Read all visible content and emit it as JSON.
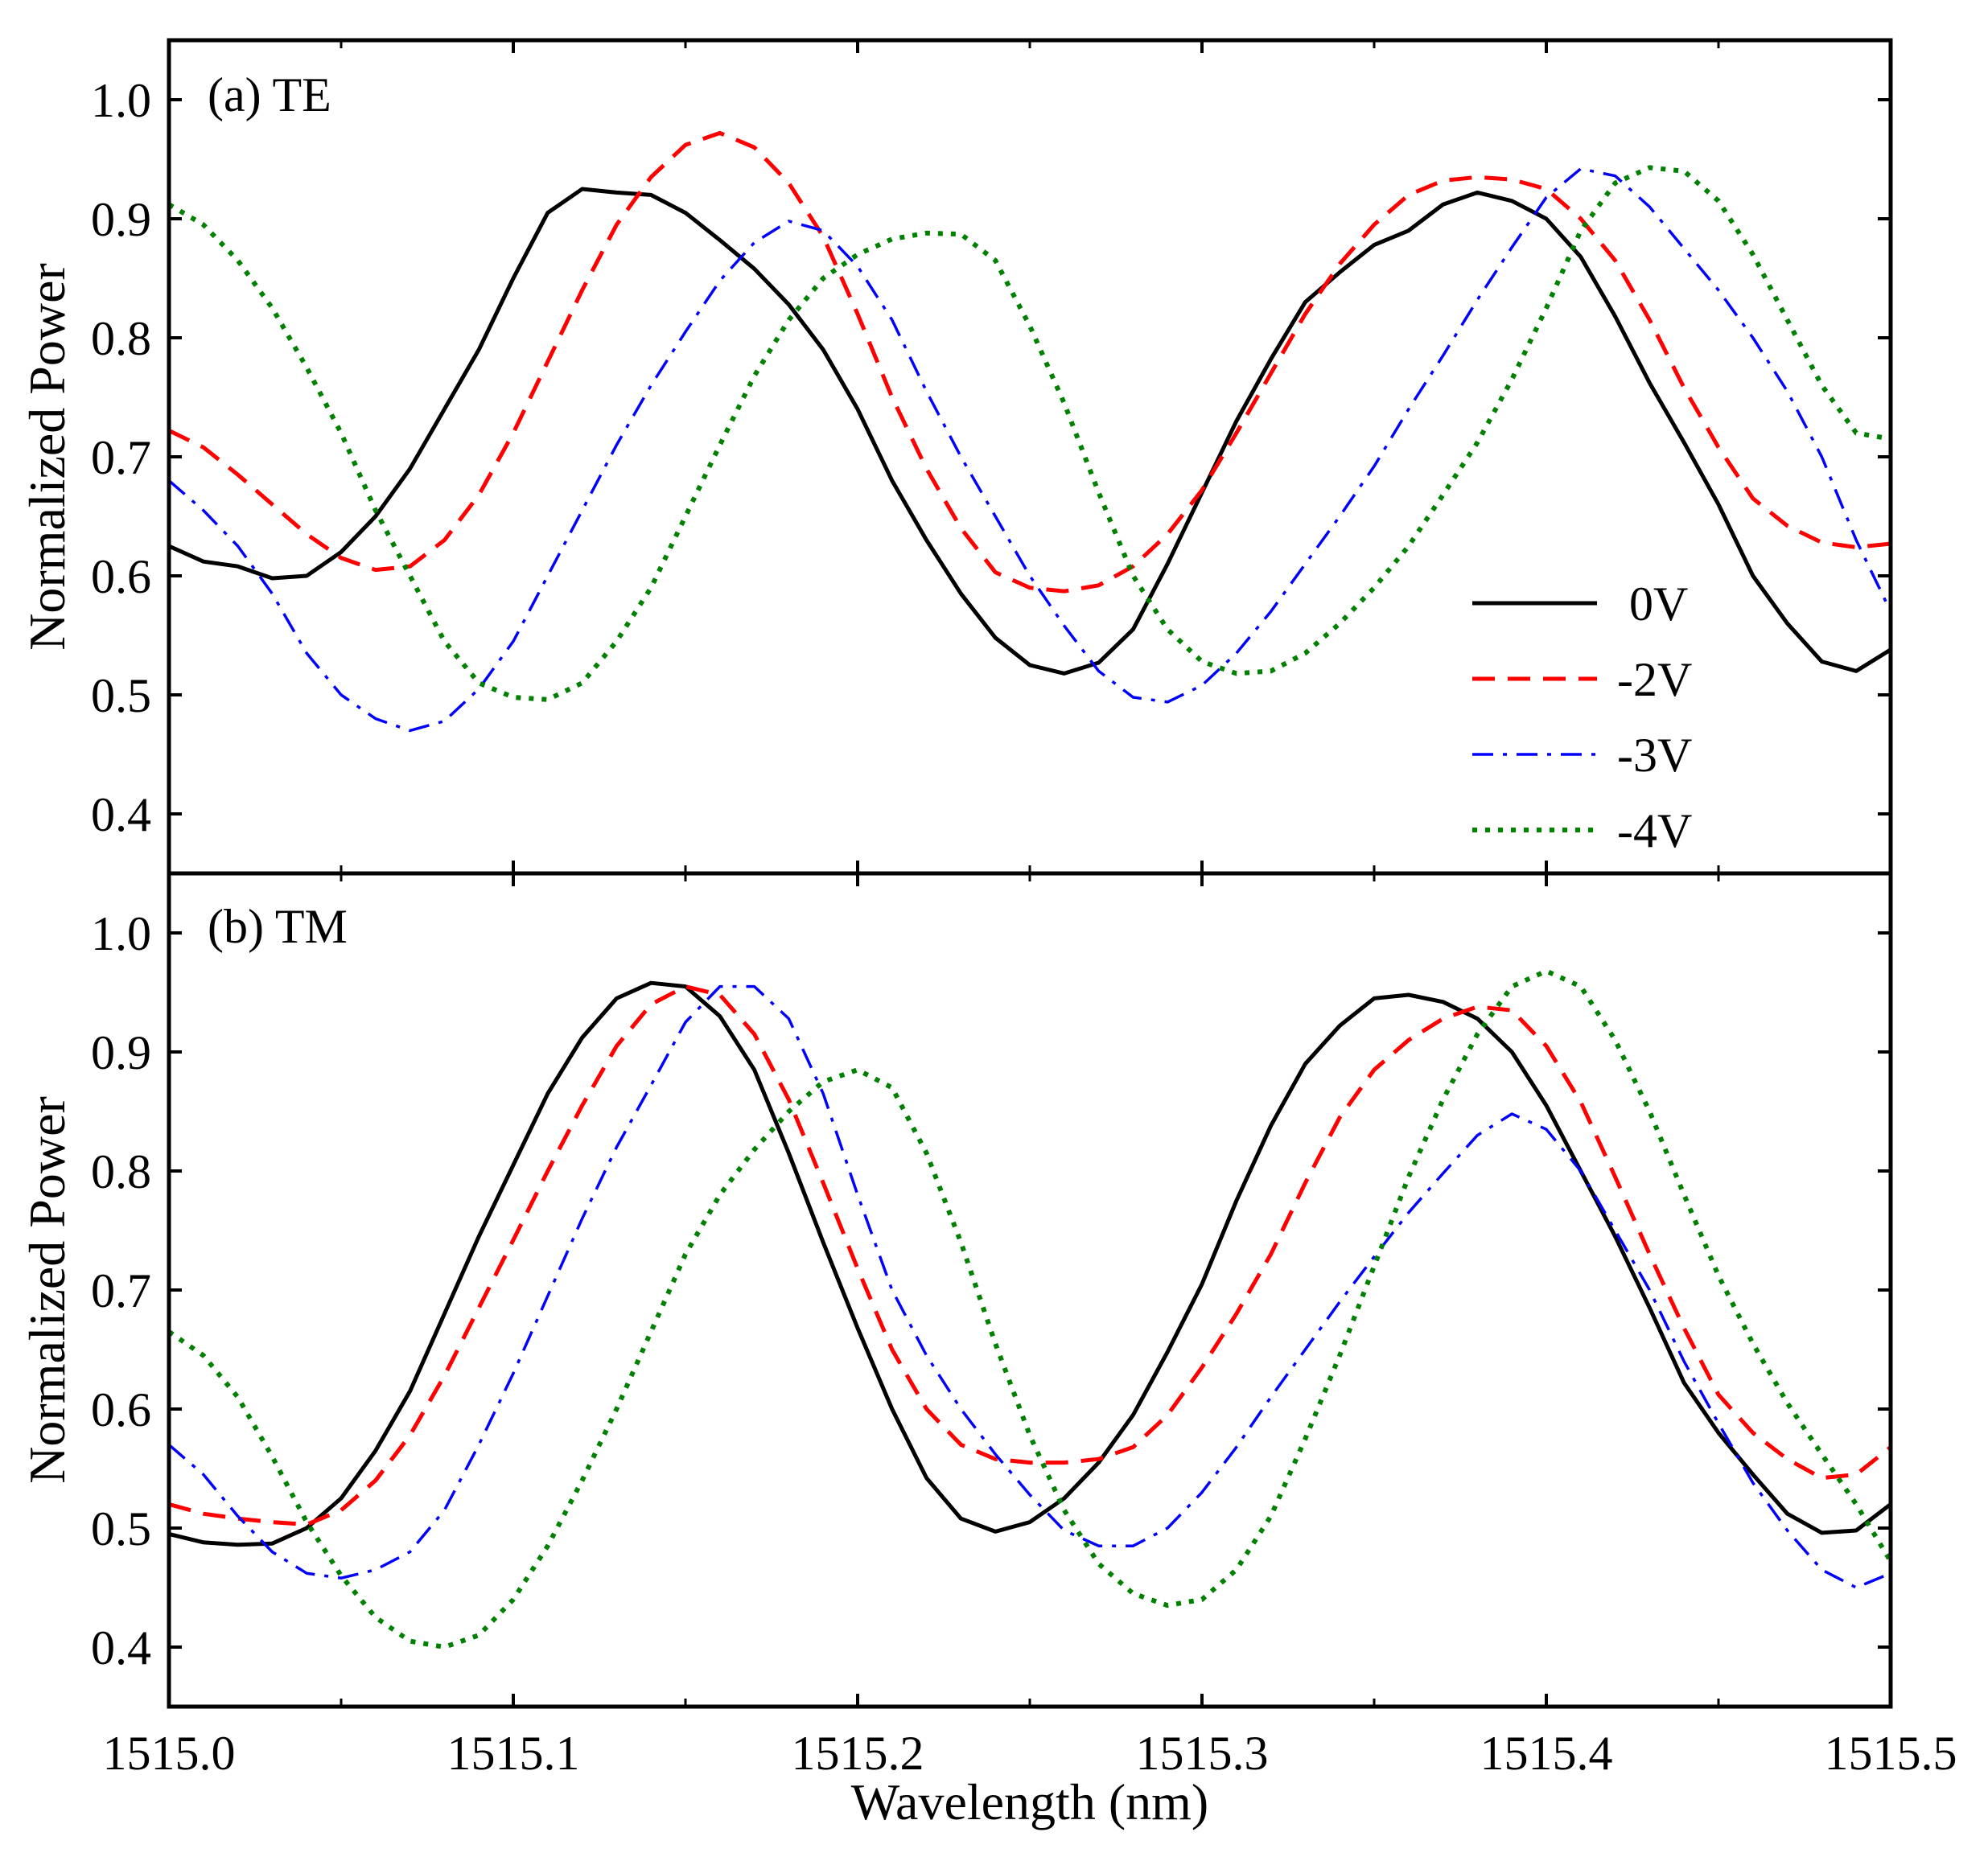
{
  "chart_data": [
    {
      "type": "line",
      "panel_label": "(a) TE",
      "xlabel": "Wavelength (nm)",
      "ylabel": "Normalized Power",
      "xlim": [
        1515.0,
        1515.5
      ],
      "ylim": [
        0.35,
        1.05
      ],
      "xticks": [
        1515.0,
        1515.1,
        1515.2,
        1515.3,
        1515.4,
        1515.5
      ],
      "xtick_labels": [
        "1515.0",
        "1515.1",
        "1515.2",
        "1515.3",
        "1515.4",
        "1515.5"
      ],
      "yticks": [
        0.4,
        0.5,
        0.6,
        0.7,
        0.8,
        0.9,
        1.0
      ],
      "ytick_labels": [
        "0.4",
        "0.5",
        "0.6",
        "0.7",
        "0.8",
        "0.9",
        "1.0"
      ],
      "legend": {
        "placement": "lower-right"
      },
      "series": [
        {
          "name": "0V",
          "color": "#000000",
          "style": "solid",
          "x": [
            1515.0,
            1515.01,
            1515.02,
            1515.03,
            1515.04,
            1515.05,
            1515.06,
            1515.07,
            1515.08,
            1515.09,
            1515.1,
            1515.11,
            1515.12,
            1515.13,
            1515.14,
            1515.15,
            1515.16,
            1515.17,
            1515.18,
            1515.19,
            1515.2,
            1515.21,
            1515.22,
            1515.23,
            1515.24,
            1515.25,
            1515.26,
            1515.27,
            1515.28,
            1515.29,
            1515.3,
            1515.31,
            1515.32,
            1515.33,
            1515.34,
            1515.35,
            1515.36,
            1515.37,
            1515.38,
            1515.39,
            1515.4,
            1515.41,
            1515.42,
            1515.43,
            1515.44,
            1515.45,
            1515.46,
            1515.47,
            1515.48,
            1515.49,
            1515.5
          ],
          "y": [
            0.625,
            0.612,
            0.608,
            0.598,
            0.6,
            0.62,
            0.65,
            0.69,
            0.74,
            0.79,
            0.85,
            0.905,
            0.925,
            0.922,
            0.92,
            0.905,
            0.882,
            0.858,
            0.828,
            0.79,
            0.74,
            0.68,
            0.63,
            0.585,
            0.548,
            0.525,
            0.518,
            0.527,
            0.555,
            0.61,
            0.67,
            0.73,
            0.782,
            0.83,
            0.855,
            0.878,
            0.89,
            0.912,
            0.922,
            0.915,
            0.9,
            0.868,
            0.818,
            0.762,
            0.712,
            0.66,
            0.6,
            0.56,
            0.528,
            0.52,
            0.538
          ]
        },
        {
          "name": "-2V",
          "color": "#ff0000",
          "style": "dashed",
          "x": [
            1515.0,
            1515.01,
            1515.02,
            1515.03,
            1515.04,
            1515.05,
            1515.06,
            1515.07,
            1515.08,
            1515.09,
            1515.1,
            1515.11,
            1515.12,
            1515.13,
            1515.14,
            1515.15,
            1515.16,
            1515.17,
            1515.18,
            1515.19,
            1515.2,
            1515.21,
            1515.22,
            1515.23,
            1515.24,
            1515.25,
            1515.26,
            1515.27,
            1515.28,
            1515.29,
            1515.3,
            1515.31,
            1515.32,
            1515.33,
            1515.34,
            1515.35,
            1515.36,
            1515.37,
            1515.38,
            1515.39,
            1515.4,
            1515.41,
            1515.42,
            1515.43,
            1515.44,
            1515.45,
            1515.46,
            1515.47,
            1515.48,
            1515.49,
            1515.5
          ],
          "y": [
            0.722,
            0.708,
            0.685,
            0.66,
            0.635,
            0.615,
            0.605,
            0.608,
            0.63,
            0.668,
            0.72,
            0.78,
            0.84,
            0.895,
            0.935,
            0.962,
            0.972,
            0.96,
            0.93,
            0.885,
            0.82,
            0.75,
            0.69,
            0.64,
            0.603,
            0.59,
            0.587,
            0.592,
            0.608,
            0.635,
            0.672,
            0.72,
            0.77,
            0.82,
            0.862,
            0.895,
            0.92,
            0.932,
            0.935,
            0.933,
            0.925,
            0.9,
            0.865,
            0.815,
            0.758,
            0.708,
            0.665,
            0.642,
            0.628,
            0.624,
            0.627
          ]
        },
        {
          "name": "-3V",
          "color": "#0000ff",
          "style": "dashdot",
          "x": [
            1515.0,
            1515.01,
            1515.02,
            1515.03,
            1515.04,
            1515.05,
            1515.06,
            1515.07,
            1515.08,
            1515.09,
            1515.1,
            1515.11,
            1515.12,
            1515.13,
            1515.14,
            1515.15,
            1515.16,
            1515.17,
            1515.18,
            1515.19,
            1515.2,
            1515.21,
            1515.22,
            1515.23,
            1515.24,
            1515.25,
            1515.26,
            1515.27,
            1515.28,
            1515.29,
            1515.3,
            1515.31,
            1515.32,
            1515.33,
            1515.34,
            1515.35,
            1515.36,
            1515.37,
            1515.38,
            1515.39,
            1515.4,
            1515.41,
            1515.42,
            1515.43,
            1515.44,
            1515.45,
            1515.46,
            1515.47,
            1515.48,
            1515.49,
            1515.5
          ],
          "y": [
            0.68,
            0.655,
            0.625,
            0.585,
            0.535,
            0.5,
            0.48,
            0.47,
            0.478,
            0.505,
            0.545,
            0.6,
            0.655,
            0.71,
            0.76,
            0.805,
            0.848,
            0.88,
            0.898,
            0.89,
            0.86,
            0.815,
            0.755,
            0.7,
            0.65,
            0.6,
            0.558,
            0.52,
            0.498,
            0.494,
            0.508,
            0.535,
            0.57,
            0.61,
            0.65,
            0.692,
            0.74,
            0.785,
            0.832,
            0.876,
            0.918,
            0.942,
            0.936,
            0.91,
            0.875,
            0.84,
            0.8,
            0.755,
            0.7,
            0.63,
            0.57
          ]
        },
        {
          "name": "-4V",
          "color": "#008000",
          "style": "dotted",
          "x": [
            1515.0,
            1515.01,
            1515.02,
            1515.03,
            1515.04,
            1515.05,
            1515.06,
            1515.07,
            1515.08,
            1515.09,
            1515.1,
            1515.11,
            1515.12,
            1515.13,
            1515.14,
            1515.15,
            1515.16,
            1515.17,
            1515.18,
            1515.19,
            1515.2,
            1515.21,
            1515.22,
            1515.23,
            1515.24,
            1515.25,
            1515.26,
            1515.27,
            1515.28,
            1515.29,
            1515.3,
            1515.31,
            1515.32,
            1515.33,
            1515.34,
            1515.35,
            1515.36,
            1515.37,
            1515.38,
            1515.39,
            1515.4,
            1515.41,
            1515.42,
            1515.43,
            1515.44,
            1515.45,
            1515.46,
            1515.47,
            1515.48,
            1515.49,
            1515.5
          ],
          "y": [
            0.912,
            0.895,
            0.865,
            0.825,
            0.775,
            0.72,
            0.655,
            0.6,
            0.545,
            0.51,
            0.498,
            0.496,
            0.51,
            0.545,
            0.59,
            0.65,
            0.71,
            0.768,
            0.815,
            0.85,
            0.87,
            0.883,
            0.888,
            0.887,
            0.865,
            0.81,
            0.745,
            0.67,
            0.6,
            0.555,
            0.528,
            0.518,
            0.52,
            0.535,
            0.56,
            0.59,
            0.625,
            0.668,
            0.712,
            0.765,
            0.825,
            0.89,
            0.93,
            0.943,
            0.94,
            0.915,
            0.87,
            0.815,
            0.76,
            0.72,
            0.715
          ]
        }
      ]
    },
    {
      "type": "line",
      "panel_label": "(b) TM",
      "xlabel": "Wavelength (nm)",
      "ylabel": "Normalized Power",
      "xlim": [
        1515.0,
        1515.5
      ],
      "ylim": [
        0.35,
        1.05
      ],
      "xticks": [
        1515.0,
        1515.1,
        1515.2,
        1515.3,
        1515.4,
        1515.5
      ],
      "xtick_labels": [
        "1515.0",
        "1515.1",
        "1515.2",
        "1515.3",
        "1515.4",
        "1515.5"
      ],
      "yticks": [
        0.4,
        0.5,
        0.6,
        0.7,
        0.8,
        0.9,
        1.0
      ],
      "ytick_labels": [
        "0.4",
        "0.5",
        "0.6",
        "0.7",
        "0.8",
        "0.9",
        "1.0"
      ],
      "series": [
        {
          "name": "0V",
          "color": "#000000",
          "style": "solid",
          "x": [
            1515.0,
            1515.01,
            1515.02,
            1515.03,
            1515.04,
            1515.05,
            1515.06,
            1515.07,
            1515.08,
            1515.09,
            1515.1,
            1515.11,
            1515.12,
            1515.13,
            1515.14,
            1515.15,
            1515.16,
            1515.17,
            1515.18,
            1515.19,
            1515.2,
            1515.21,
            1515.22,
            1515.23,
            1515.24,
            1515.25,
            1515.26,
            1515.27,
            1515.28,
            1515.29,
            1515.3,
            1515.31,
            1515.32,
            1515.33,
            1515.34,
            1515.35,
            1515.36,
            1515.37,
            1515.38,
            1515.39,
            1515.4,
            1515.41,
            1515.42,
            1515.43,
            1515.44,
            1515.45,
            1515.46,
            1515.47,
            1515.48,
            1515.49,
            1515.5
          ],
          "y": [
            0.495,
            0.488,
            0.486,
            0.487,
            0.5,
            0.525,
            0.565,
            0.615,
            0.68,
            0.745,
            0.805,
            0.865,
            0.912,
            0.945,
            0.958,
            0.955,
            0.93,
            0.885,
            0.815,
            0.74,
            0.668,
            0.6,
            0.542,
            0.508,
            0.497,
            0.505,
            0.525,
            0.555,
            0.595,
            0.648,
            0.705,
            0.775,
            0.838,
            0.89,
            0.922,
            0.945,
            0.948,
            0.942,
            0.928,
            0.9,
            0.855,
            0.8,
            0.745,
            0.685,
            0.622,
            0.58,
            0.545,
            0.512,
            0.496,
            0.498,
            0.52
          ]
        },
        {
          "name": "-2V",
          "color": "#ff0000",
          "style": "dashed",
          "x": [
            1515.0,
            1515.01,
            1515.02,
            1515.03,
            1515.04,
            1515.05,
            1515.06,
            1515.07,
            1515.08,
            1515.09,
            1515.1,
            1515.11,
            1515.12,
            1515.13,
            1515.14,
            1515.15,
            1515.16,
            1515.17,
            1515.18,
            1515.19,
            1515.2,
            1515.21,
            1515.22,
            1515.23,
            1515.24,
            1515.25,
            1515.26,
            1515.27,
            1515.28,
            1515.29,
            1515.3,
            1515.31,
            1515.32,
            1515.33,
            1515.34,
            1515.35,
            1515.36,
            1515.37,
            1515.38,
            1515.39,
            1515.4,
            1515.41,
            1515.42,
            1515.43,
            1515.44,
            1515.45,
            1515.46,
            1515.47,
            1515.48,
            1515.49,
            1515.5
          ],
          "y": [
            0.52,
            0.512,
            0.508,
            0.505,
            0.503,
            0.515,
            0.54,
            0.578,
            0.628,
            0.685,
            0.742,
            0.8,
            0.855,
            0.905,
            0.94,
            0.955,
            0.948,
            0.915,
            0.86,
            0.79,
            0.718,
            0.65,
            0.6,
            0.57,
            0.558,
            0.555,
            0.555,
            0.558,
            0.568,
            0.595,
            0.635,
            0.68,
            0.73,
            0.79,
            0.845,
            0.885,
            0.91,
            0.928,
            0.938,
            0.935,
            0.905,
            0.858,
            0.795,
            0.73,
            0.668,
            0.612,
            0.58,
            0.558,
            0.542,
            0.545,
            0.568
          ]
        },
        {
          "name": "-3V",
          "color": "#0000ff",
          "style": "dashdot",
          "x": [
            1515.0,
            1515.01,
            1515.02,
            1515.03,
            1515.04,
            1515.05,
            1515.06,
            1515.07,
            1515.08,
            1515.09,
            1515.1,
            1515.11,
            1515.12,
            1515.13,
            1515.14,
            1515.15,
            1515.16,
            1515.17,
            1515.18,
            1515.19,
            1515.2,
            1515.21,
            1515.22,
            1515.23,
            1515.24,
            1515.25,
            1515.26,
            1515.27,
            1515.28,
            1515.29,
            1515.3,
            1515.31,
            1515.32,
            1515.33,
            1515.34,
            1515.35,
            1515.36,
            1515.37,
            1515.38,
            1515.39,
            1515.4,
            1515.41,
            1515.42,
            1515.43,
            1515.44,
            1515.45,
            1515.46,
            1515.47,
            1515.48,
            1515.49,
            1515.5
          ],
          "y": [
            0.57,
            0.545,
            0.51,
            0.48,
            0.462,
            0.458,
            0.465,
            0.48,
            0.515,
            0.57,
            0.63,
            0.695,
            0.76,
            0.82,
            0.872,
            0.925,
            0.955,
            0.955,
            0.928,
            0.865,
            0.78,
            0.7,
            0.645,
            0.6,
            0.562,
            0.528,
            0.498,
            0.485,
            0.485,
            0.5,
            0.53,
            0.568,
            0.61,
            0.65,
            0.69,
            0.728,
            0.765,
            0.798,
            0.83,
            0.848,
            0.835,
            0.8,
            0.75,
            0.7,
            0.64,
            0.588,
            0.538,
            0.498,
            0.465,
            0.45,
            0.462
          ]
        },
        {
          "name": "-4V",
          "color": "#008000",
          "style": "dotted",
          "x": [
            1515.0,
            1515.01,
            1515.02,
            1515.03,
            1515.04,
            1515.05,
            1515.06,
            1515.07,
            1515.08,
            1515.09,
            1515.1,
            1515.11,
            1515.12,
            1515.13,
            1515.14,
            1515.15,
            1515.16,
            1515.17,
            1515.18,
            1515.19,
            1515.2,
            1515.21,
            1515.22,
            1515.23,
            1515.24,
            1515.25,
            1515.26,
            1515.27,
            1515.28,
            1515.29,
            1515.3,
            1515.31,
            1515.32,
            1515.33,
            1515.34,
            1515.35,
            1515.36,
            1515.37,
            1515.38,
            1515.39,
            1515.4,
            1515.41,
            1515.42,
            1515.43,
            1515.44,
            1515.45,
            1515.46,
            1515.47,
            1515.48,
            1515.49,
            1515.5
          ],
          "y": [
            0.665,
            0.645,
            0.61,
            0.56,
            0.505,
            0.46,
            0.425,
            0.405,
            0.4,
            0.41,
            0.44,
            0.485,
            0.54,
            0.6,
            0.665,
            0.73,
            0.78,
            0.818,
            0.85,
            0.875,
            0.885,
            0.87,
            0.815,
            0.74,
            0.655,
            0.578,
            0.515,
            0.47,
            0.445,
            0.435,
            0.44,
            0.465,
            0.51,
            0.575,
            0.645,
            0.72,
            0.795,
            0.86,
            0.915,
            0.955,
            0.968,
            0.955,
            0.91,
            0.85,
            0.78,
            0.712,
            0.655,
            0.605,
            0.562,
            0.52,
            0.472
          ]
        }
      ]
    }
  ]
}
